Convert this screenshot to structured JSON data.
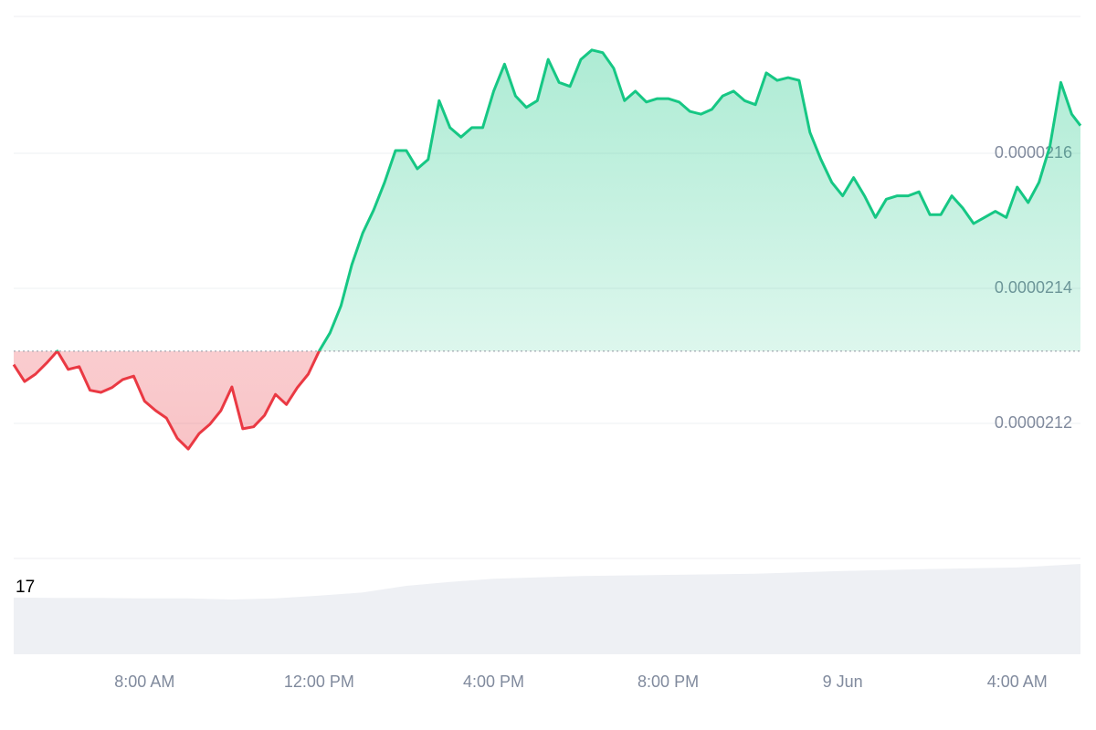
{
  "chart_data": [
    {
      "type": "line",
      "x": [
        5,
        5.25,
        5.5,
        5.75,
        6,
        6.25,
        6.5,
        6.75,
        7,
        7.25,
        7.5,
        7.75,
        8,
        8.25,
        8.5,
        8.75,
        9,
        9.25,
        9.5,
        9.75,
        10,
        10.25,
        10.5,
        10.75,
        11,
        11.25,
        11.5,
        11.75,
        12,
        12.25,
        12.5,
        12.75,
        13,
        13.25,
        13.5,
        13.75,
        14,
        14.25,
        14.5,
        14.75,
        15,
        15.25,
        15.5,
        15.75,
        16,
        16.25,
        16.5,
        16.75,
        17,
        17.25,
        17.5,
        17.75,
        18,
        18.25,
        18.5,
        18.75,
        19,
        19.25,
        19.5,
        19.75,
        20,
        20.25,
        20.5,
        20.75,
        21,
        21.25,
        21.5,
        21.75,
        22,
        22.25,
        22.5,
        22.75,
        23,
        23.25,
        23.5,
        23.75,
        24,
        24.25,
        24.5,
        24.75,
        25,
        25.25,
        25.5,
        25.75,
        26,
        26.25,
        26.5,
        26.75,
        27,
        27.25,
        27.5,
        27.75,
        28,
        28.25,
        28.5,
        28.75,
        29,
        29.25,
        29.45
      ],
      "values": [
        2.1287e-05,
        2.1262e-05,
        2.1273e-05,
        2.1289e-05,
        2.1307e-05,
        2.128e-05,
        2.1284e-05,
        2.1249e-05,
        2.1246e-05,
        2.1253e-05,
        2.1265e-05,
        2.127e-05,
        2.1233e-05,
        2.1219e-05,
        2.1208e-05,
        2.1178e-05,
        2.1162e-05,
        2.1185e-05,
        2.1199e-05,
        2.1219e-05,
        2.1254e-05,
        2.1192e-05,
        2.1195e-05,
        2.1212e-05,
        2.1243e-05,
        2.1228e-05,
        2.1253e-05,
        2.1273e-05,
        2.1307e-05,
        2.1334e-05,
        2.1374e-05,
        2.1435e-05,
        2.1482e-05,
        2.1516e-05,
        2.1557e-05,
        2.1604e-05,
        2.1604e-05,
        2.1577e-05,
        2.1591e-05,
        2.1678e-05,
        2.1638e-05,
        2.1624e-05,
        2.1638e-05,
        2.1638e-05,
        2.1692e-05,
        2.1732e-05,
        2.1685e-05,
        2.1668e-05,
        2.1678e-05,
        2.1739e-05,
        2.1705e-05,
        2.1699e-05,
        2.1739e-05,
        2.1753e-05,
        2.1749e-05,
        2.1726e-05,
        2.1678e-05,
        2.1692e-05,
        2.1676e-05,
        2.1681e-05,
        2.1681e-05,
        2.1676e-05,
        2.1662e-05,
        2.1658e-05,
        2.1665e-05,
        2.1685e-05,
        2.1692e-05,
        2.1678e-05,
        2.1672e-05,
        2.1719e-05,
        2.1708e-05,
        2.1712e-05,
        2.1708e-05,
        2.1631e-05,
        2.1591e-05,
        2.1557e-05,
        2.1537e-05,
        2.1564e-05,
        2.1537e-05,
        2.1505e-05,
        2.1532e-05,
        2.1537e-05,
        2.1537e-05,
        2.1543e-05,
        2.1509e-05,
        2.1509e-05,
        2.1537e-05,
        2.1519e-05,
        2.1496e-05,
        2.1505e-05,
        2.1514e-05,
        2.1505e-05,
        2.155e-05,
        2.1527e-05,
        2.1557e-05,
        2.1611e-05,
        2.1705e-05,
        2.1658e-05,
        2.1641e-05
      ],
      "xlim": [
        5,
        29.45
      ],
      "ylim": [
        2.1e-05,
        2.18e-05
      ],
      "yticks": [
        2.12e-05,
        2.14e-05,
        2.16e-05
      ],
      "xticks": [
        {
          "value": 8,
          "label": "8:00 AM"
        },
        {
          "value": 12,
          "label": "12:00 PM"
        },
        {
          "value": 16,
          "label": "4:00 PM"
        },
        {
          "value": 20,
          "label": "8:00 PM"
        },
        {
          "value": 24,
          "label": "9 Jun"
        },
        {
          "value": 28,
          "label": "4:00 AM"
        }
      ],
      "baseline": 2.1307e-05,
      "colors": {
        "above": "#16c784",
        "below": "#ea3943"
      },
      "grid": true
    },
    {
      "type": "area",
      "x": [
        5,
        6,
        7,
        8,
        9,
        10,
        11,
        12,
        13,
        14,
        15,
        16,
        18,
        20,
        22,
        24,
        26,
        28,
        29.45
      ],
      "values": [
        14.5,
        14.4,
        14.4,
        14.3,
        14.3,
        14.0,
        14.3,
        15.0,
        15.8,
        17.5,
        18.5,
        19.3,
        20.0,
        20.3,
        20.6,
        21.3,
        21.8,
        22.2,
        23.1
      ],
      "xlim": [
        5,
        29.45
      ],
      "ylim": [
        0,
        24.5
      ],
      "yticks": [
        17
      ],
      "color": "#eef0f4"
    }
  ]
}
